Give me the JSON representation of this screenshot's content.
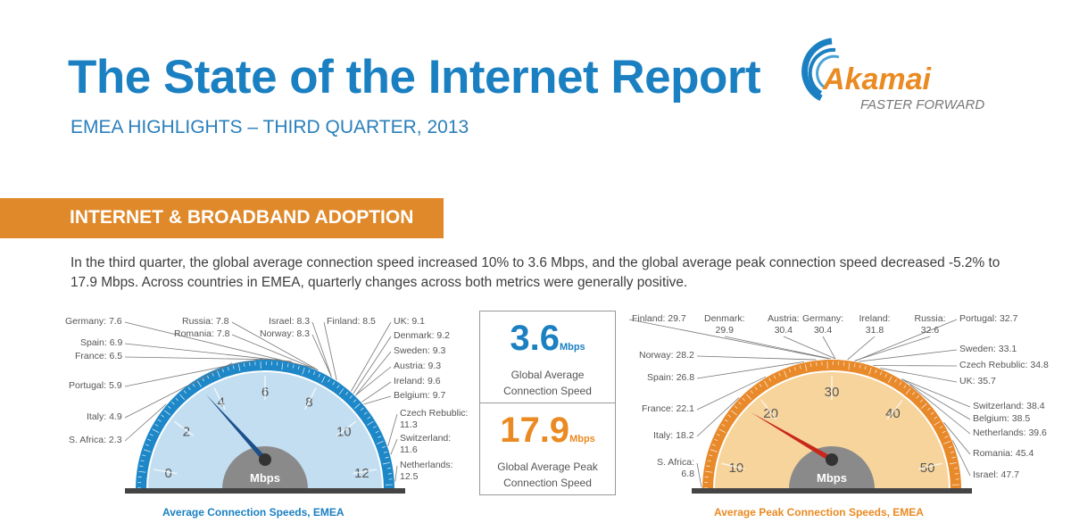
{
  "header": {
    "title": "The State of the Internet Report",
    "subtitle": "EMEA HIGHLIGHTS – THIRD QUARTER, 2013"
  },
  "logo": {
    "word": "Akamai",
    "tagline": "FASTER FORWARD",
    "colors": {
      "swoosh": "#1b80c2",
      "word": "#ea8a22"
    }
  },
  "section": {
    "banner": "INTERNET & BROADBAND ADOPTION",
    "paragraph": "In the third quarter, the global average connection speed increased 10% to 3.6 Mbps, and the global average peak connection speed decreased -5.2% to 17.9 Mbps. Across countries in EMEA, quarterly changes across both metrics were generally positive."
  },
  "summary": [
    {
      "value": "3.6",
      "unit": "Mbps",
      "caption_1": "Global Average",
      "caption_2": "Connection Speed",
      "color": "#1b80c2"
    },
    {
      "value": "17.9",
      "unit": "Mbps",
      "caption_1": "Global Average Peak",
      "caption_2": "Connection Speed",
      "color": "#ea8a22"
    }
  ],
  "chart_data": [
    {
      "type": "gauge",
      "title": "Average Connection Speeds, EMEA",
      "unit": "Mbps",
      "ticks": [
        0,
        2,
        4,
        6,
        8,
        10,
        12
      ],
      "scale_min": -0.75,
      "scale_max": 12.75,
      "needle": 3.6,
      "colors": {
        "ring": "#1d87c8",
        "fill": "#c3def0",
        "needle": "#1d4f8c",
        "title": "#1b80c2"
      },
      "countries": [
        {
          "name": "Germany",
          "value": "7.6"
        },
        {
          "name": "Russia",
          "value": "7.8"
        },
        {
          "name": "Romania",
          "value": "7.8"
        },
        {
          "name": "Israel",
          "value": "8.3"
        },
        {
          "name": "Norway",
          "value": "8.3"
        },
        {
          "name": "Finland",
          "value": "8.5"
        },
        {
          "name": "UK",
          "value": "9.1"
        },
        {
          "name": "Denmark",
          "value": "9.2"
        },
        {
          "name": "Sweden",
          "value": "9.3"
        },
        {
          "name": "Austria",
          "value": "9.3"
        },
        {
          "name": "Ireland",
          "value": "9.6"
        },
        {
          "name": "Belgium",
          "value": "9.7"
        },
        {
          "name": "Spain",
          "value": "6.9"
        },
        {
          "name": "France",
          "value": "6.5"
        },
        {
          "name": "Portugal",
          "value": "5.9"
        },
        {
          "name": "Italy",
          "value": "4.9"
        },
        {
          "name": "S. Africa",
          "value": "2.3"
        },
        {
          "name": "Czech Rebublic",
          "value": "11.3"
        },
        {
          "name": "Switzerland",
          "value": "11.6"
        },
        {
          "name": "Netherlands",
          "value": "12.5"
        }
      ]
    },
    {
      "type": "gauge",
      "title": "Average Peak Connection Speeds, EMEA",
      "unit": "Mbps",
      "ticks": [
        10,
        20,
        30,
        40,
        50
      ],
      "scale_min": 6.6,
      "scale_max": 53.4,
      "needle": 17.9,
      "colors": {
        "ring": "#e8892a",
        "fill": "#f7d49c",
        "needle": "#c8281a",
        "title": "#ea8a22"
      },
      "countries": [
        {
          "name": "Finland",
          "value": "29.7"
        },
        {
          "name": "Denmark",
          "value": "29.9"
        },
        {
          "name": "Austria",
          "value": "30.4"
        },
        {
          "name": "Germany",
          "value": "30.4"
        },
        {
          "name": "Ireland",
          "value": "31.8"
        },
        {
          "name": "Russia",
          "value": "32.6"
        },
        {
          "name": "Portugal",
          "value": "32.7"
        },
        {
          "name": "Norway",
          "value": "28.2"
        },
        {
          "name": "Spain",
          "value": "26.8"
        },
        {
          "name": "France",
          "value": "22.1"
        },
        {
          "name": "Italy",
          "value": "18.2"
        },
        {
          "name": "S. Africa",
          "value": "6.8"
        },
        {
          "name": "Sweden",
          "value": "33.1"
        },
        {
          "name": "Czech Rebublic",
          "value": "34.8"
        },
        {
          "name": "UK",
          "value": "35.7"
        },
        {
          "name": "Switzerland",
          "value": "38.4"
        },
        {
          "name": "Belgium",
          "value": "38.5"
        },
        {
          "name": "Netherlands",
          "value": "39.6"
        },
        {
          "name": "Romania",
          "value": "45.4"
        },
        {
          "name": "Israel",
          "value": "47.7"
        }
      ]
    }
  ]
}
